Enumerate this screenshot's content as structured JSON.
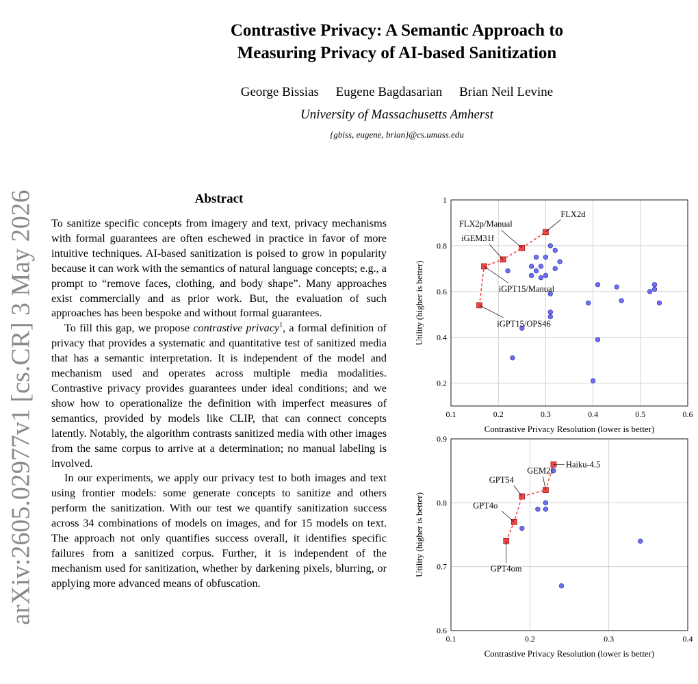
{
  "arxiv_id": "arXiv:2605.02977v1  [cs.CR]  3 May 2026",
  "header": {
    "title_lines": [
      "Contrastive Privacy: A Semantic Approach to",
      "Measuring Privacy of AI-based Sanitization"
    ],
    "authors": [
      "George Bissias",
      "Eugene Bagdasarian",
      "Brian Neil Levine"
    ],
    "affiliation": "University of Massachusetts Amherst",
    "email": "{gbiss, eugene, brian}@cs.umass.edu"
  },
  "abstract": {
    "heading": "Abstract",
    "paragraph_1": "To sanitize specific concepts from imagery and text, privacy mechanisms with formal guarantees are often eschewed in practice in favor of more intuitive techniques. AI-based sanitization is poised to grow in popularity because it can work with the semantics of natural language concepts; e.g., a prompt to “remove faces, clothing, and body shape”. Many approaches exist commercially and as prior work. But, the evaluation of such approaches has been bespoke and without formal guarantees.",
    "paragraph_2": {
      "before": "To fill this gap, we propose ",
      "emphasis": "contrastive privacy",
      "footnote": "1",
      "after": ", a formal definition of privacy that provides a systematic and quantitative test of sanitized media that has a semantic interpretation. It is independent of the model and mechanism used and operates across multiple media modalities. Contrastive privacy provides guarantees under ideal conditions; and we show how to operationalize the definition with imperfect measures of semantics, provided by models like CLIP, that can connect concepts latently. Notably, the algorithm contrasts sanitized media with other images from the same corpus to arrive at a determination; no manual labeling is involved."
    },
    "paragraph_3": "In our experiments, we apply our privacy test to both images and text using frontier models: some generate concepts to sanitize and others perform the sanitization. With our test we quantify sanitization success across 34 combinations of models on images, and for 15 models on text. The approach not only quantifies success overall, it identifies specific failures from a sanitized corpus. Further, it is independent of the mechanism used for sanitization, whether by darkening pixels, blurring, or applying more advanced means of obfuscation."
  },
  "chart_data": [
    {
      "type": "scatter",
      "xlabel": "Contrastive Privacy Resolution (lower is better)",
      "ylabel": "Utility (higher is better)",
      "xlim": [
        0.1,
        0.6
      ],
      "ylim": [
        0.1,
        1
      ],
      "xticks": [
        0.1,
        0.2,
        0.3,
        0.4,
        0.5,
        0.6
      ],
      "yticks": [
        0.2,
        0.4,
        0.6,
        0.8,
        1
      ],
      "grid": true,
      "series": [
        {
          "color": "#7070f5",
          "marker": "circle",
          "x": [
            0.22,
            0.25,
            0.23,
            0.28,
            0.31,
            0.32,
            0.3,
            0.27,
            0.29,
            0.28,
            0.27,
            0.29,
            0.3,
            0.32,
            0.33,
            0.31,
            0.31,
            0.31,
            0.41,
            0.39,
            0.41,
            0.4,
            0.45,
            0.46,
            0.52,
            0.53,
            0.53,
            0.54
          ],
          "y": [
            0.69,
            0.44,
            0.31,
            0.75,
            0.8,
            0.78,
            0.75,
            0.71,
            0.71,
            0.69,
            0.67,
            0.66,
            0.67,
            0.7,
            0.73,
            0.59,
            0.51,
            0.49,
            0.63,
            0.55,
            0.39,
            0.21,
            0.62,
            0.56,
            0.6,
            0.61,
            0.63,
            0.55
          ]
        },
        {
          "color": "#f04848",
          "marker": "square",
          "line": "dashed",
          "x": [
            0.16,
            0.17,
            0.21,
            0.25,
            0.3
          ],
          "y": [
            0.54,
            0.71,
            0.74,
            0.79,
            0.86
          ],
          "labels": [
            "iGPT15/OPS46",
            "iGPT15/Manual",
            "iGEM31f",
            "FLX2p/Manual",
            "FLX2d"
          ]
        }
      ]
    },
    {
      "type": "scatter",
      "xlabel": "Contrastive Privacy Resolution (lower is better)",
      "ylabel": "Utility (higher is better)",
      "xlim": [
        0.1,
        0.4
      ],
      "ylim": [
        0.6,
        0.9
      ],
      "xticks": [
        0.1,
        0.2,
        0.3,
        0.4
      ],
      "yticks": [
        0.6,
        0.7,
        0.8,
        0.9
      ],
      "grid": true,
      "series": [
        {
          "color": "#7070f5",
          "marker": "circle",
          "x": [
            0.23,
            0.19,
            0.22,
            0.22,
            0.21,
            0.34,
            0.24
          ],
          "y": [
            0.85,
            0.76,
            0.8,
            0.79,
            0.79,
            0.74,
            0.67
          ]
        },
        {
          "color": "#f04848",
          "marker": "square",
          "line": "dashed",
          "x": [
            0.17,
            0.18,
            0.19,
            0.22,
            0.23
          ],
          "y": [
            0.74,
            0.77,
            0.81,
            0.82,
            0.86
          ],
          "labels": [
            "GPT4om",
            "GPT4o",
            "GPT54",
            "GEM2f",
            "Haiku-4.5"
          ]
        }
      ]
    }
  ]
}
